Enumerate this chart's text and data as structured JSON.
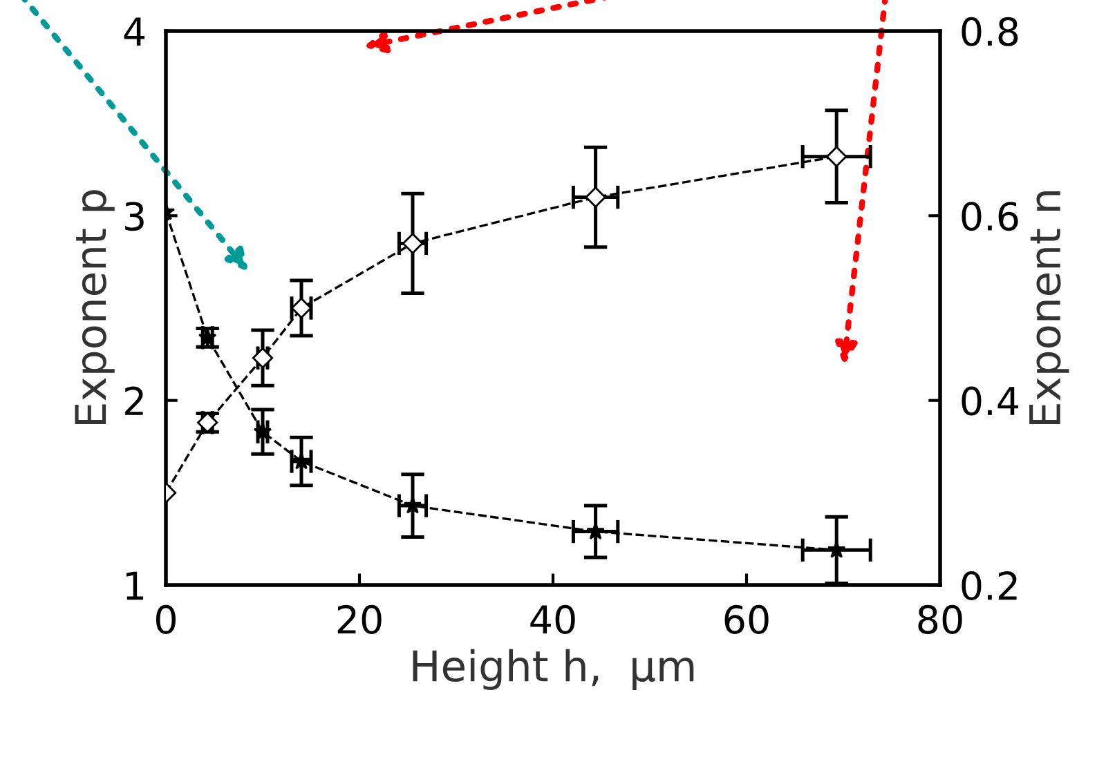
{
  "chart_data": {
    "type": "line",
    "xlabel": "Height h,  μm",
    "ylabel": "Exponent p",
    "y2label": "Exponent n",
    "x": [
      0,
      4.3,
      10,
      14,
      25.5,
      44.4,
      69.3
    ],
    "series": [
      {
        "color": "#000000",
        "marker": "star",
        "values": [
          3.02,
          2.34,
          1.83,
          1.67,
          1.43,
          1.29,
          1.19
        ],
        "errors": [
          null,
          0.05,
          0.12,
          0.13,
          0.17,
          0.14,
          0.18
        ],
        "xerrors": [
          null,
          0.5,
          0.5,
          1,
          1.4,
          2.3,
          3.5
        ]
      },
      {
        "color": "#000000",
        "marker": "diamond",
        "axis": "y2",
        "values": [
          0.3,
          0.376,
          0.446,
          0.5,
          0.57,
          0.62,
          0.664
        ],
        "errors": [
          null,
          0.01,
          0.03,
          0.03,
          0.054,
          0.054,
          0.05
        ],
        "xerrors": [
          null,
          0.5,
          0.5,
          1,
          1.4,
          2.3,
          3.5
        ]
      }
    ],
    "line_style": "dashed",
    "xlim": [
      0,
      80
    ],
    "xticks": [
      0,
      20,
      40,
      60,
      80
    ],
    "ylim": [
      1,
      4
    ],
    "yticks": [
      1,
      2,
      3,
      4
    ],
    "y2lim": [
      0.2,
      0.8
    ],
    "y2ticks": [
      0.2,
      0.4,
      0.6,
      0.8
    ],
    "grid": false
  }
}
